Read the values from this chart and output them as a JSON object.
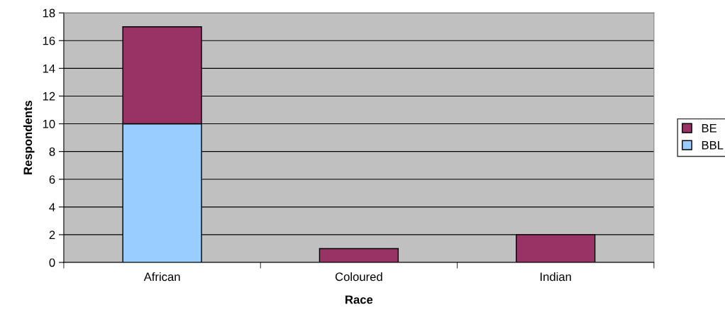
{
  "chart_data": {
    "type": "bar",
    "stacked": true,
    "xlabel": "Race",
    "ylabel": "Respondents",
    "categories": [
      "African",
      "Coloured",
      "Indian"
    ],
    "series": [
      {
        "name": "BBL",
        "color": "#99ccff",
        "values": [
          10,
          0,
          0
        ]
      },
      {
        "name": "BE",
        "color": "#993366",
        "values": [
          7,
          1,
          2
        ]
      }
    ],
    "ylim": [
      0,
      18
    ],
    "yticks": [
      0,
      2,
      4,
      6,
      8,
      10,
      12,
      14,
      16,
      18
    ],
    "grid": "y",
    "legend": "right"
  }
}
